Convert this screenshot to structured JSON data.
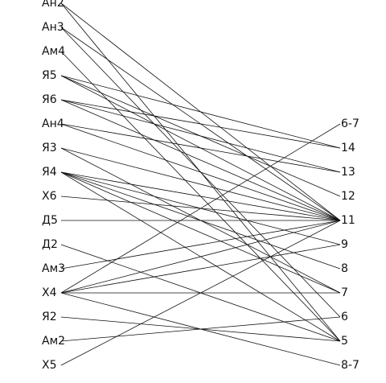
{
  "diagram": {
    "left_labels": [
      "Ан2",
      "Ан3",
      "Ам4",
      "Я5",
      "Я6",
      "Ан4",
      "Я3",
      "Я4",
      "Х6",
      "Д5",
      "Д2",
      "Ам3",
      "Х4",
      "Я2",
      "Ам2",
      "Х5"
    ],
    "right_labels": [
      "6-7",
      "14",
      "13",
      "12",
      "11",
      "9",
      "8",
      "7",
      "6",
      "5",
      "8-7"
    ],
    "edges": [
      [
        "Ан2",
        "11"
      ],
      [
        "Ан2",
        "5"
      ],
      [
        "Ан3",
        "11"
      ],
      [
        "Ан3",
        "6"
      ],
      [
        "Ам4",
        "5"
      ],
      [
        "Я5",
        "14"
      ],
      [
        "Я5",
        "12"
      ],
      [
        "Я5",
        "11"
      ],
      [
        "Я6",
        "14"
      ],
      [
        "Я6",
        "13"
      ],
      [
        "Я6",
        "11"
      ],
      [
        "Ан4",
        "13"
      ],
      [
        "Ан4",
        "11"
      ],
      [
        "Я3",
        "11"
      ],
      [
        "Я3",
        "7"
      ],
      [
        "Я4",
        "11"
      ],
      [
        "Я4",
        "9"
      ],
      [
        "Я4",
        "8"
      ],
      [
        "Я4",
        "7"
      ],
      [
        "Я4",
        "5"
      ],
      [
        "Х6",
        "11"
      ],
      [
        "Д5",
        "11"
      ],
      [
        "Д2",
        "5"
      ],
      [
        "Ам3",
        "11"
      ],
      [
        "Х4",
        "6-7"
      ],
      [
        "Х4",
        "11"
      ],
      [
        "Х4",
        "9"
      ],
      [
        "Х4",
        "7"
      ],
      [
        "Х4",
        "8-7"
      ],
      [
        "Я2",
        "5"
      ],
      [
        "Ам2",
        "6"
      ],
      [
        "Х5",
        "11"
      ]
    ]
  }
}
